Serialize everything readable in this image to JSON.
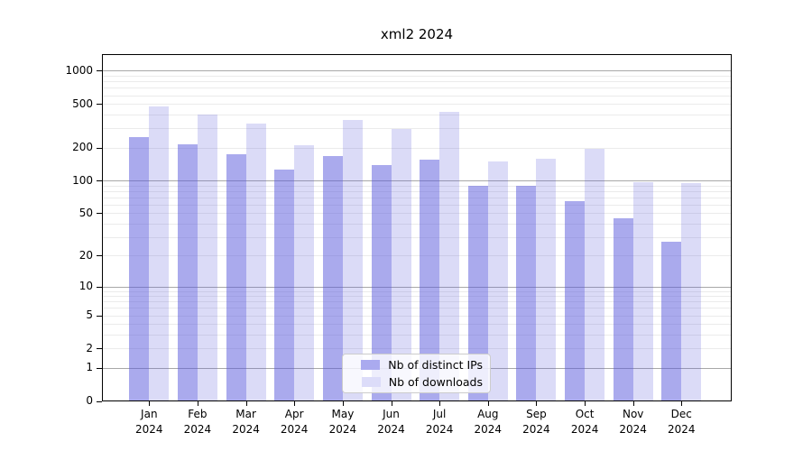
{
  "chart_data": {
    "type": "bar",
    "title": "xml2 2024",
    "x_year": "2024",
    "categories": [
      "Jan",
      "Feb",
      "Mar",
      "Apr",
      "May",
      "Jun",
      "Jul",
      "Aug",
      "Sep",
      "Oct",
      "Nov",
      "Dec"
    ],
    "series": [
      {
        "name": "Nb of distinct IPs",
        "fill_rgba": "rgba(85,85,219,0.5)",
        "swatch_hex": "#aaaaef",
        "values": [
          250,
          218,
          175,
          126,
          170,
          139,
          156,
          90,
          90,
          65,
          45,
          27
        ]
      },
      {
        "name": "Nb of downloads",
        "fill_rgba": "rgba(85,85,219,0.21)",
        "swatch_hex": "#dcdcf9",
        "values": [
          475,
          405,
          335,
          212,
          362,
          296,
          427,
          152,
          158,
          197,
          97,
          95
        ]
      }
    ],
    "y_axis": {
      "scale": "log10(value+1)",
      "tick_labels": [
        1000,
        500,
        200,
        100,
        50,
        20,
        10,
        5,
        2,
        1,
        0
      ],
      "major_grid_values": [
        1,
        10,
        100,
        1000
      ],
      "ylim_top": 1430
    },
    "grid": true,
    "legend_position": "bottom-center"
  }
}
